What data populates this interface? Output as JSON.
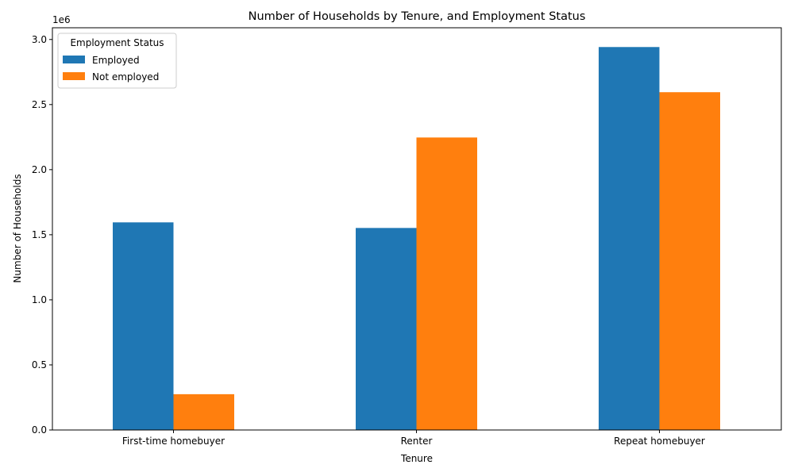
{
  "chart_data": {
    "type": "bar",
    "title": "Number of Households by Tenure, and Employment Status",
    "xlabel": "Tenure",
    "ylabel": "Number of Households",
    "y_offset_text": "1e6",
    "categories": [
      "First-time homebuyer",
      "Renter",
      "Repeat homebuyer"
    ],
    "series": [
      {
        "name": "Employed",
        "color": "#1f77b4",
        "values": [
          1595000,
          1552000,
          2942000
        ]
      },
      {
        "name": "Not employed",
        "color": "#ff7f0e",
        "values": [
          275000,
          2247000,
          2595000
        ]
      }
    ],
    "ylim": [
      0,
      3090000
    ],
    "yticks": [
      0,
      500000,
      1000000,
      1500000,
      2000000,
      2500000,
      3000000
    ],
    "ytick_labels": [
      "0.0",
      "0.5",
      "1.0",
      "1.5",
      "2.0",
      "2.5",
      "3.0"
    ],
    "legend": {
      "title": "Employment Status",
      "position": "top-left"
    },
    "grid": false
  }
}
